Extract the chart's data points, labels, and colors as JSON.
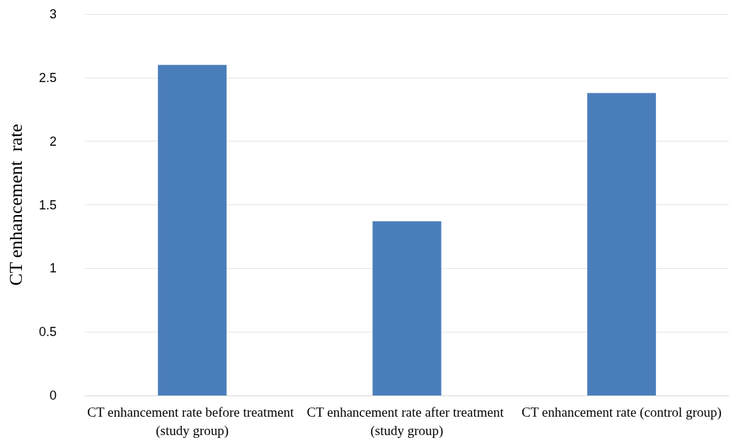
{
  "chart_data": {
    "type": "bar",
    "ylabel": "CT enhancement  rate",
    "categories": [
      "CT enhancement rate before treatment (study group)",
      "CT enhancement rate after treatment (study group)",
      "CT enhancement rate (control group)"
    ],
    "values": [
      2.6,
      1.37,
      2.38
    ],
    "color": "#4a7ebb",
    "ylim": [
      0,
      3
    ],
    "yticks": [
      0,
      0.5,
      1,
      1.5,
      2,
      2.5,
      3
    ],
    "grid": "y"
  }
}
